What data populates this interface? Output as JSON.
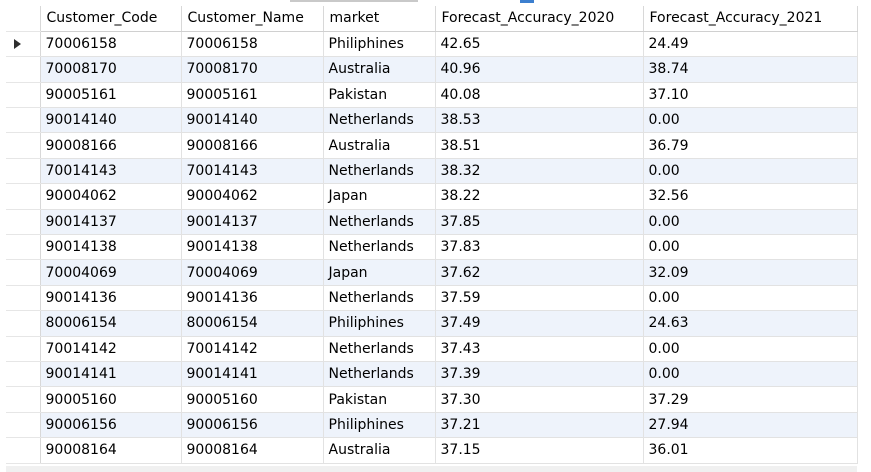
{
  "grid": {
    "columns": [
      "Customer_Code",
      "Customer_Name",
      "market",
      "Forecast_Accuracy_2020",
      "Forecast_Accuracy_2021"
    ],
    "rows": [
      [
        "70006158",
        "70006158",
        "Philiphines",
        "42.65",
        "24.49"
      ],
      [
        "70008170",
        "70008170",
        "Australia",
        "40.96",
        "38.74"
      ],
      [
        "90005161",
        "90005161",
        "Pakistan",
        "40.08",
        "37.10"
      ],
      [
        "90014140",
        "90014140",
        "Netherlands",
        "38.53",
        "0.00"
      ],
      [
        "90008166",
        "90008166",
        "Australia",
        "38.51",
        "36.79"
      ],
      [
        "70014143",
        "70014143",
        "Netherlands",
        "38.32",
        "0.00"
      ],
      [
        "90004062",
        "90004062",
        "Japan",
        "38.22",
        "32.56"
      ],
      [
        "90014137",
        "90014137",
        "Netherlands",
        "37.85",
        "0.00"
      ],
      [
        "90014138",
        "90014138",
        "Netherlands",
        "37.83",
        "0.00"
      ],
      [
        "70004069",
        "70004069",
        "Japan",
        "37.62",
        "32.09"
      ],
      [
        "90014136",
        "90014136",
        "Netherlands",
        "37.59",
        "0.00"
      ],
      [
        "80006154",
        "80006154",
        "Philiphines",
        "37.49",
        "24.63"
      ],
      [
        "70014142",
        "70014142",
        "Netherlands",
        "37.43",
        "0.00"
      ],
      [
        "90014141",
        "90014141",
        "Netherlands",
        "37.39",
        "0.00"
      ],
      [
        "90005160",
        "90005160",
        "Pakistan",
        "37.30",
        "37.29"
      ],
      [
        "90006156",
        "90006156",
        "Philiphines",
        "37.21",
        "27.94"
      ],
      [
        "90008164",
        "90008164",
        "Australia",
        "37.15",
        "36.01"
      ]
    ],
    "current_row_indicator": "row-pointer-arrow-icon"
  },
  "colors": {
    "alt_row": "#eef3fb",
    "grid_line": "#e2e2e2"
  }
}
